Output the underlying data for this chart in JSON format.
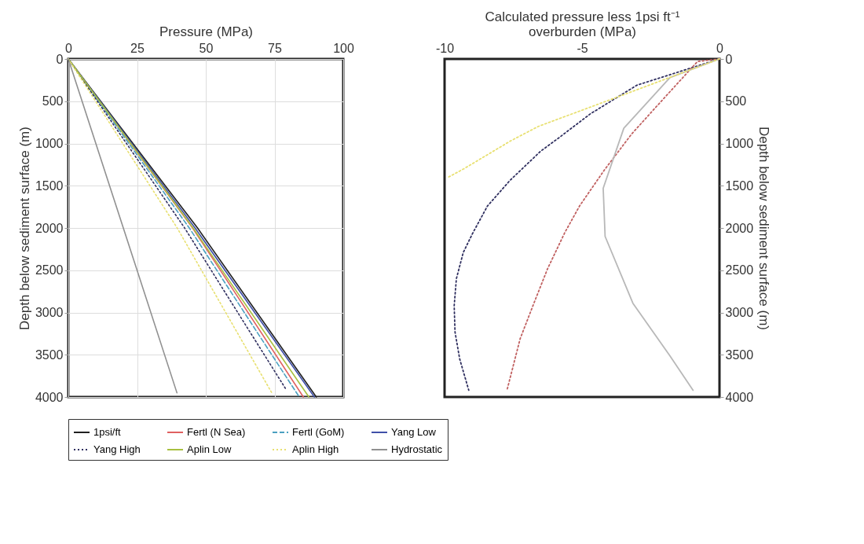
{
  "chart_data": [
    {
      "type": "line",
      "xlabel": "Pressure (MPa)",
      "ylabel": "Depth below sediment surface (m)",
      "xlim": [
        0,
        100
      ],
      "xticks": [
        0,
        25,
        50,
        75,
        100
      ],
      "ylim": [
        4000,
        0
      ],
      "yticks": [
        0,
        500,
        1000,
        1500,
        2000,
        2500,
        3000,
        3500,
        4000
      ],
      "grid": true,
      "legend": "bottom",
      "series": [
        {
          "name": "1psi/ft",
          "color": "#202020",
          "line_style": "solid",
          "x": [
            0,
            47,
            90.2
          ],
          "values": [
            0,
            2000,
            4000
          ]
        },
        {
          "name": "Fertl (N Sea)",
          "color": "#e06060",
          "line_style": "solid",
          "x": [
            0,
            45.2,
            85.5
          ],
          "values": [
            0,
            2000,
            4000
          ]
        },
        {
          "name": "Fertl (GoM)",
          "color": "#4aa0c0",
          "line_style": "dashed",
          "x": [
            0,
            44,
            84
          ],
          "values": [
            0,
            2000,
            4000
          ]
        },
        {
          "name": "Yang Low",
          "color": "#4050a8",
          "line_style": "solid",
          "x": [
            0,
            46.1,
            89.5
          ],
          "values": [
            0,
            2000,
            4000
          ]
        },
        {
          "name": "Yang High",
          "color": "#303060",
          "line_style": "dotted",
          "x": [
            0,
            42.3,
            79
          ],
          "values": [
            0,
            2000,
            3900
          ]
        },
        {
          "name": "Aplin Low",
          "color": "#a8c040",
          "line_style": "solid",
          "x": [
            0,
            45.4,
            87.5
          ],
          "values": [
            0,
            2000,
            4000
          ]
        },
        {
          "name": "Aplin High",
          "color": "#e8e070",
          "line_style": "dotted",
          "x": [
            0,
            39.6,
            74
          ],
          "values": [
            0,
            2000,
            3950
          ]
        },
        {
          "name": "Hydrostatic",
          "color": "#909090",
          "line_style": "solid",
          "x": [
            0,
            20,
            39.5
          ],
          "values": [
            0,
            2000,
            3950
          ]
        }
      ]
    },
    {
      "type": "line",
      "xlabel": "Calculated pressure less 1psi ft⁻¹\noverburden (MPa)",
      "y2label": "Depth below sediment surface (m)",
      "xlim": [
        -10,
        0
      ],
      "xticks": [
        -10,
        -5,
        0
      ],
      "y2lim": [
        4000,
        0
      ],
      "y2ticks": [
        0,
        500,
        1000,
        1500,
        2000,
        2500,
        3000,
        3500,
        4000
      ],
      "grid": false,
      "series": [
        {
          "color": "#303060",
          "line_style": "dotted",
          "axis": "y2",
          "x": [
            0,
            -3.0,
            -4.7,
            -5.87,
            -6.5,
            -7.63,
            -8.44,
            -8.99,
            -9.32,
            -9.57,
            -9.65,
            -9.62,
            -9.45,
            -9.12
          ],
          "values": [
            0,
            310,
            650,
            940,
            1090,
            1440,
            1740,
            2070,
            2290,
            2600,
            2920,
            3230,
            3550,
            3920
          ]
        },
        {
          "color": "#c06060",
          "line_style": "dotted",
          "axis": "y2",
          "x": [
            0,
            -0.8,
            -2.34,
            -3.2,
            -4.2,
            -5.09,
            -5.62,
            -6.25,
            -6.75,
            -7.25,
            -7.73
          ],
          "values": [
            0,
            30,
            580,
            890,
            1320,
            1740,
            2050,
            2480,
            2890,
            3310,
            3920
          ]
        },
        {
          "color": "#b8b8b8",
          "line_style": "solid",
          "axis": "y2",
          "x": [
            0,
            -1.8,
            -3.48,
            -4.23,
            -4.16,
            -3.15,
            -1.81,
            -0.96
          ],
          "values": [
            0,
            220,
            820,
            1530,
            2100,
            2890,
            3510,
            3920
          ]
        },
        {
          "color": "#e8e070",
          "line_style": "dotted",
          "axis": "y2",
          "x": [
            0,
            -6.6,
            -7.6,
            -9.3,
            -9.87
          ],
          "values": [
            0,
            800,
            970,
            1300,
            1400
          ]
        }
      ]
    }
  ]
}
